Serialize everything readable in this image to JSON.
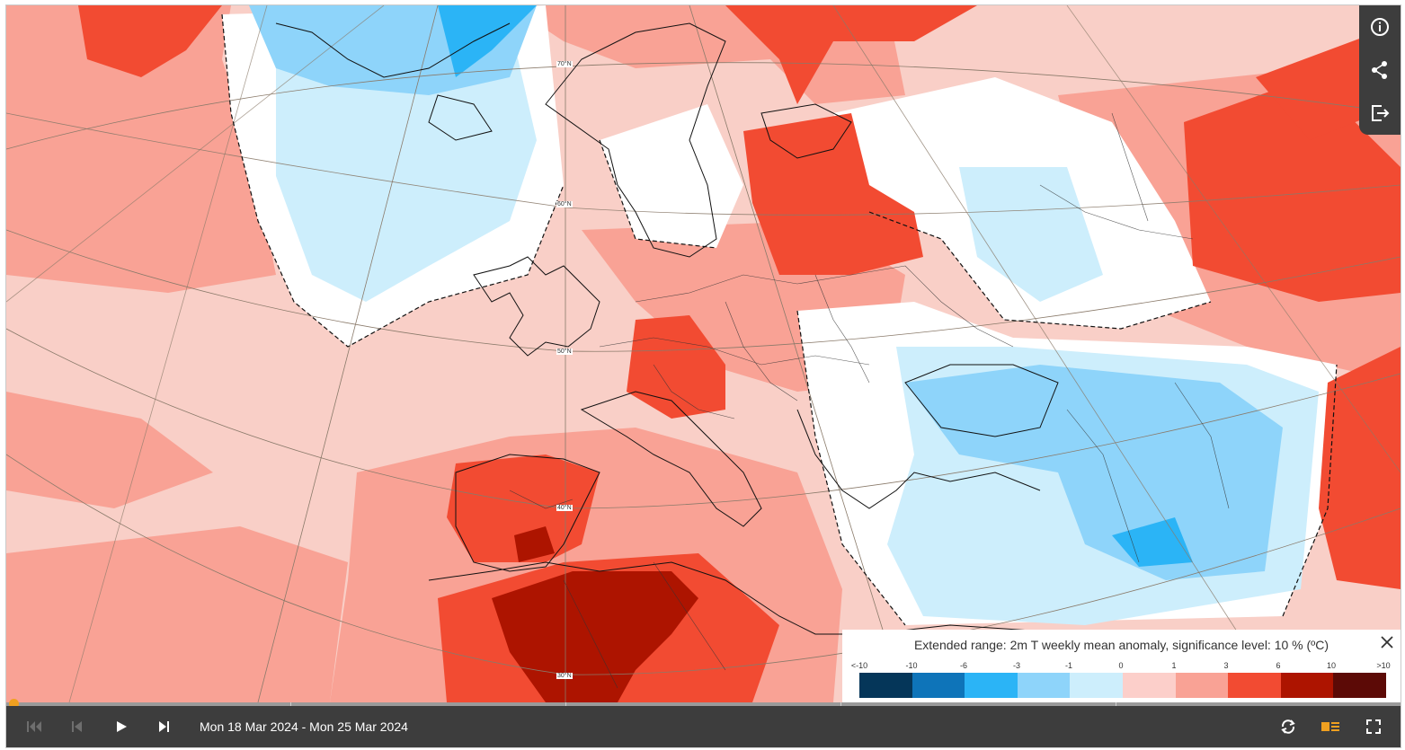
{
  "map": {
    "lat_labels": [
      "70°N",
      "60°N",
      "50°N",
      "40°N",
      "30°N"
    ]
  },
  "legend": {
    "title": "Extended range: 2m T weekly mean anomaly, significance level: 10 % (ºC)",
    "ticks": [
      "<-10",
      "-10",
      "-6",
      "-3",
      "-1",
      "0",
      "1",
      "3",
      "6",
      "10",
      ">10"
    ],
    "colors": [
      "#053659",
      "#0e74b9",
      "#2bb4f6",
      "#8ed4fa",
      "#cdeefc",
      "#fccfca",
      "#f9a295",
      "#f24b32",
      "#ad1400",
      "#5c0a06"
    ]
  },
  "controls": {
    "date_range": "Mon 18 Mar 2024 - Mon 25 Mar 2024",
    "accent_color": "#f0a020"
  },
  "icons": [
    "info-icon",
    "share-icon",
    "export-icon",
    "skip-to-start-icon",
    "step-back-icon",
    "play-icon",
    "step-forward-icon",
    "loop-icon",
    "legend-toggle-icon",
    "fullscreen-icon",
    "close-icon"
  ]
}
